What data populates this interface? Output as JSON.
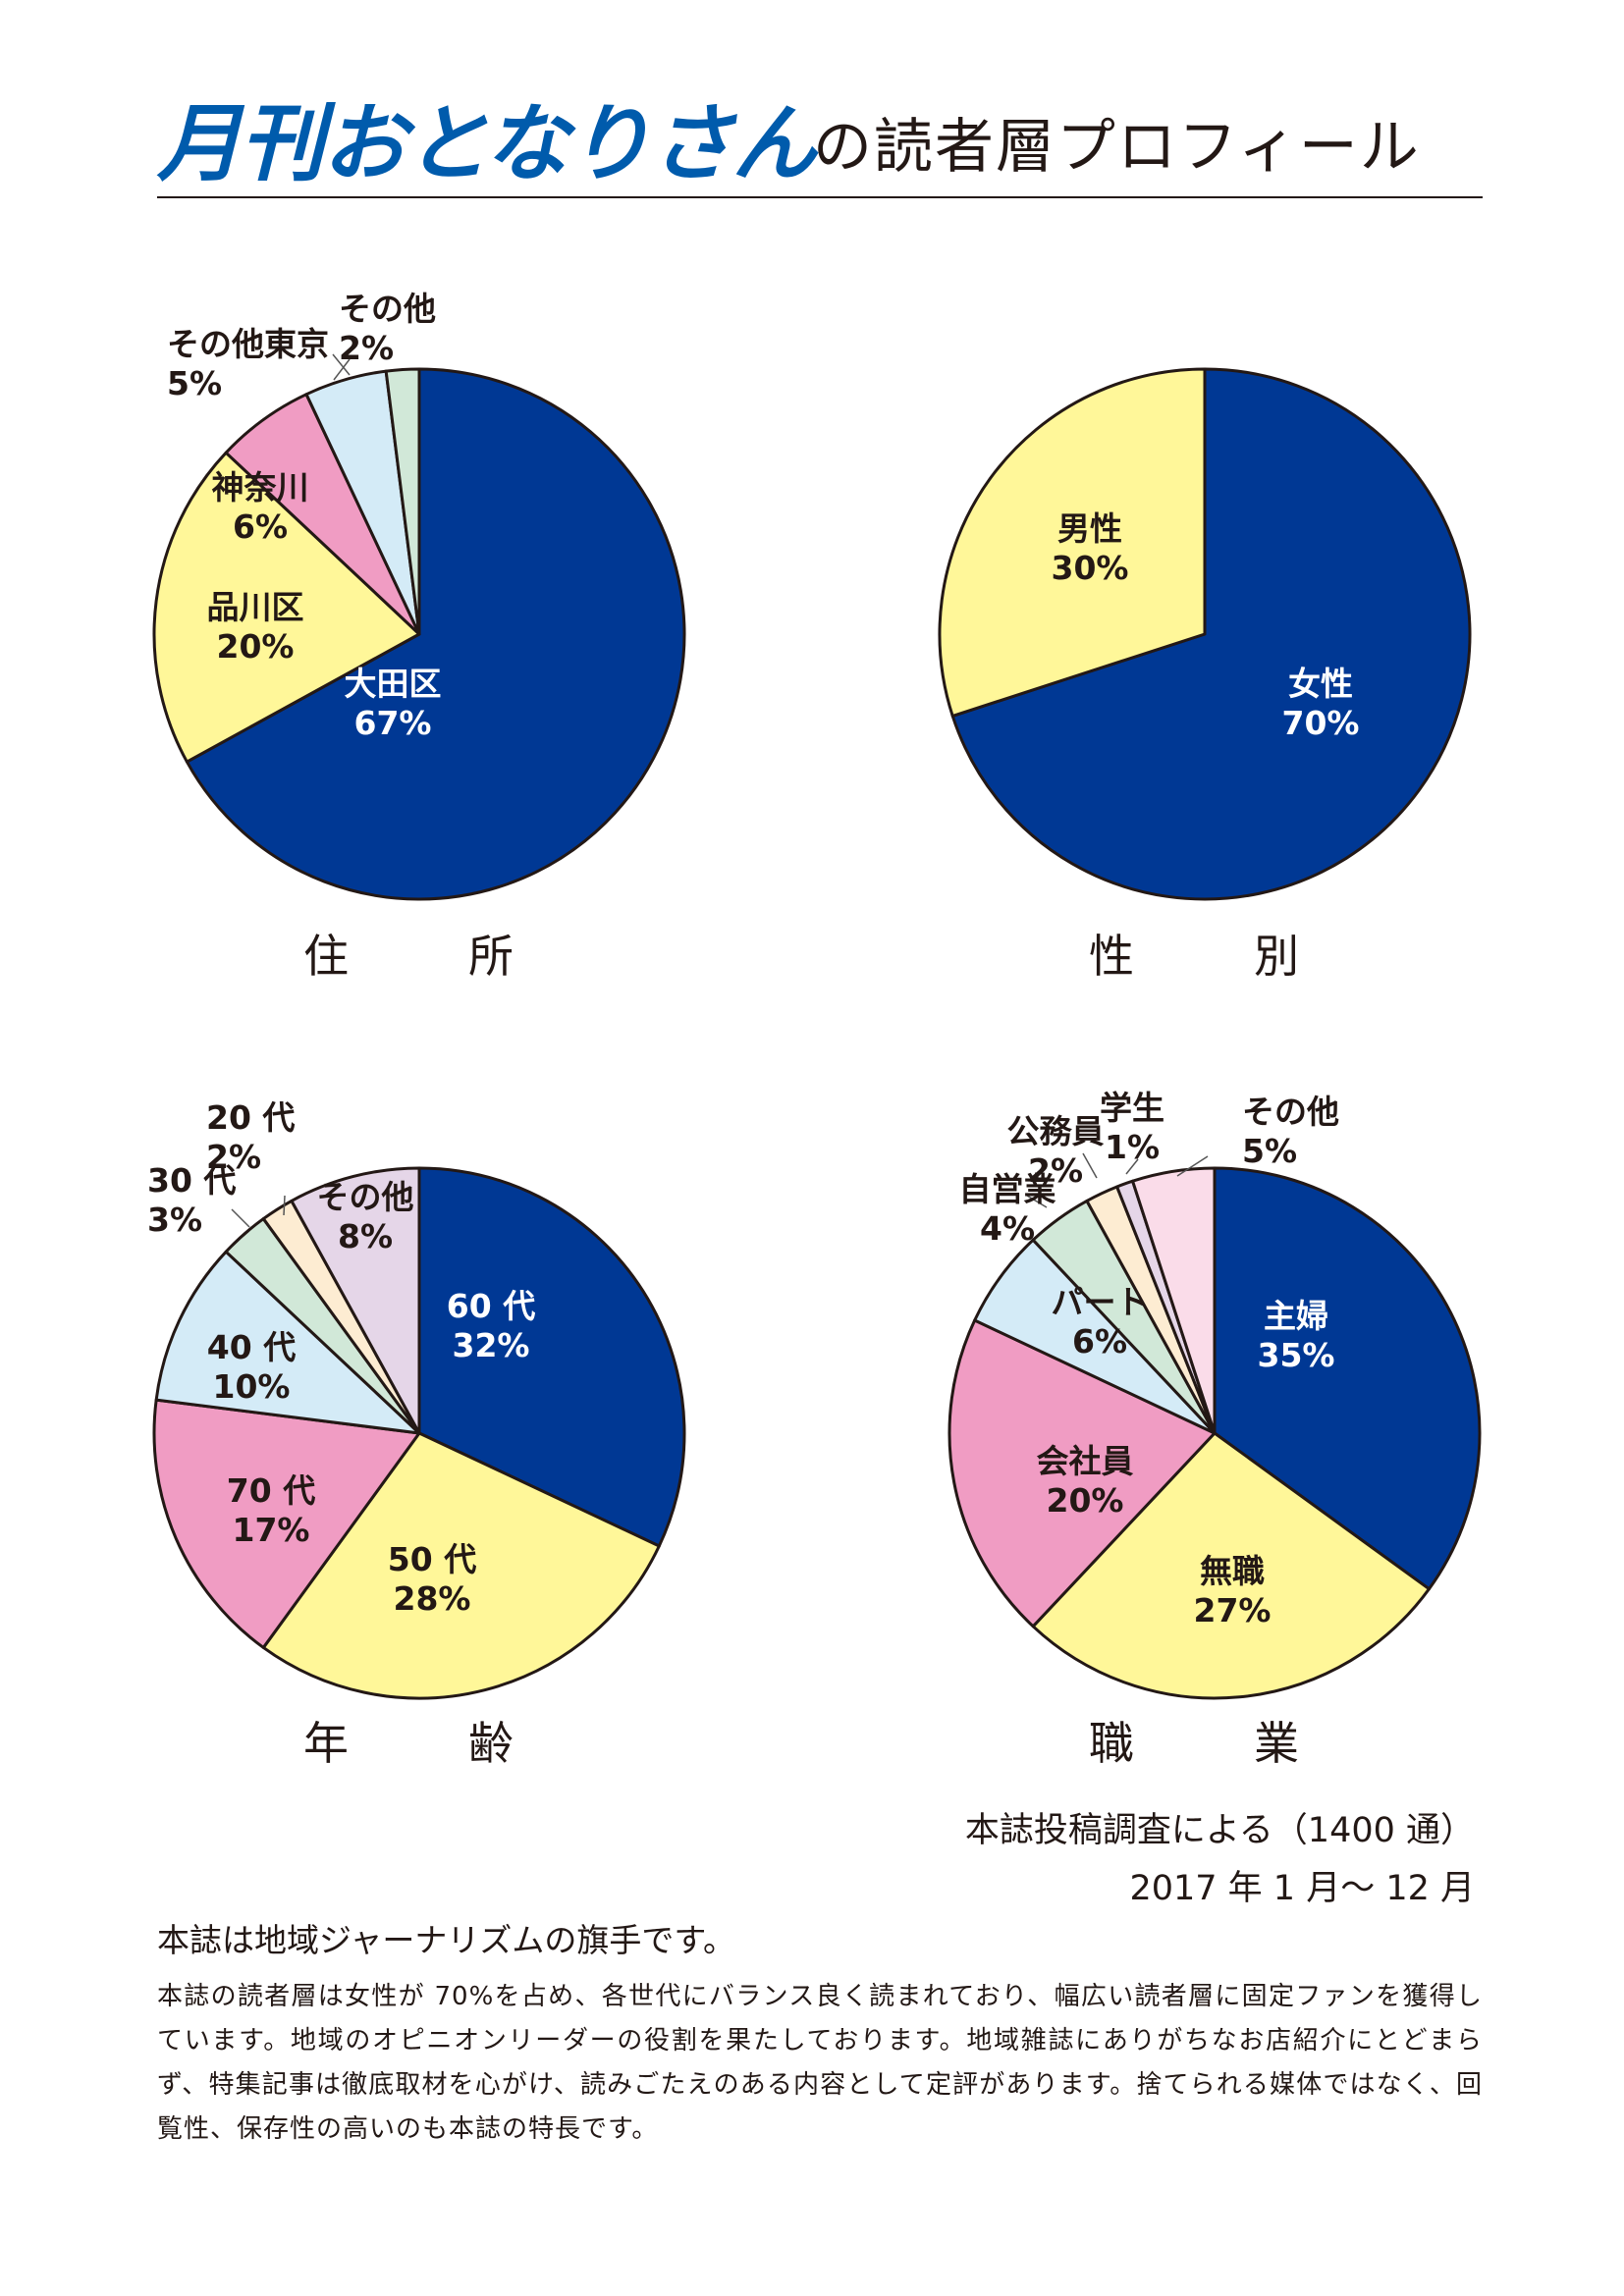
{
  "header": {
    "logo": "月刊おとなりさん",
    "title": "の読者層プロフィール"
  },
  "chart_data": [
    {
      "type": "pie",
      "title": "住　所",
      "slices": [
        {
          "label": "大田区",
          "value": 67,
          "display": "67%",
          "color": "#003894"
        },
        {
          "label": "品川区",
          "value": 20,
          "display": "20%",
          "color": "#fff799"
        },
        {
          "label": "神奈川",
          "value": 6,
          "display": "6%",
          "color": "#f09cc3"
        },
        {
          "label": "その他東京",
          "value": 5,
          "display": "5%",
          "color": "#d4ebf7"
        },
        {
          "label": "その他",
          "value": 2,
          "display": "2%",
          "color": "#d1e8d8"
        }
      ]
    },
    {
      "type": "pie",
      "title": "性　別",
      "slices": [
        {
          "label": "女性",
          "value": 70,
          "display": "70%",
          "color": "#003894"
        },
        {
          "label": "男性",
          "value": 30,
          "display": "30%",
          "color": "#fff799"
        }
      ]
    },
    {
      "type": "pie",
      "title": "年　齢",
      "slices": [
        {
          "label": "60 代",
          "value": 32,
          "display": "32%",
          "color": "#003894"
        },
        {
          "label": "50 代",
          "value": 28,
          "display": "28%",
          "color": "#fff799"
        },
        {
          "label": "70 代",
          "value": 17,
          "display": "17%",
          "color": "#f09cc3"
        },
        {
          "label": "40 代",
          "value": 10,
          "display": "10%",
          "color": "#d4ebf7"
        },
        {
          "label": "30 代",
          "value": 3,
          "display": "3%",
          "color": "#d1e8d8"
        },
        {
          "label": "20 代",
          "value": 2,
          "display": "2%",
          "color": "#fdecd2"
        },
        {
          "label": "その他",
          "value": 8,
          "display": "8%",
          "color": "#e5d6e8"
        }
      ]
    },
    {
      "type": "pie",
      "title": "職　業",
      "slices": [
        {
          "label": "主婦",
          "value": 35,
          "display": "35%",
          "color": "#003894"
        },
        {
          "label": "無職",
          "value": 27,
          "display": "27%",
          "color": "#fff799"
        },
        {
          "label": "会社員",
          "value": 20,
          "display": "20%",
          "color": "#f09cc3"
        },
        {
          "label": "パート",
          "value": 6,
          "display": "6%",
          "color": "#d4ebf7"
        },
        {
          "label": "自営業",
          "value": 4,
          "display": "4%",
          "color": "#d1e8d8"
        },
        {
          "label": "公務員",
          "value": 2,
          "display": "2%",
          "color": "#fdecd2"
        },
        {
          "label": "学生",
          "value": 1,
          "display": "1%",
          "color": "#e5d6e8"
        },
        {
          "label": "その他",
          "value": 5,
          "display": "5%",
          "color": "#fadce9"
        }
      ]
    }
  ],
  "source": {
    "line1": "本誌投稿調査による（1400 通）",
    "line2": "2017 年 1 月～ 12 月"
  },
  "body": {
    "heading": "本誌は地域ジャーナリズムの旗手です。",
    "text": "本誌の読者層は女性が 70%を占め、各世代にバランス良く読まれており、幅広い読者層に固定ファンを獲得しています。地域のオピニオンリーダーの役割を果たしております。地域雑誌にありがちなお店紹介にとどまらず、特集記事は徹底取材を心がけ、読みごたえのある内容として定評があります。捨てられる媒体ではなく、回覧性、保存性の高いのも本誌の特長です。"
  }
}
